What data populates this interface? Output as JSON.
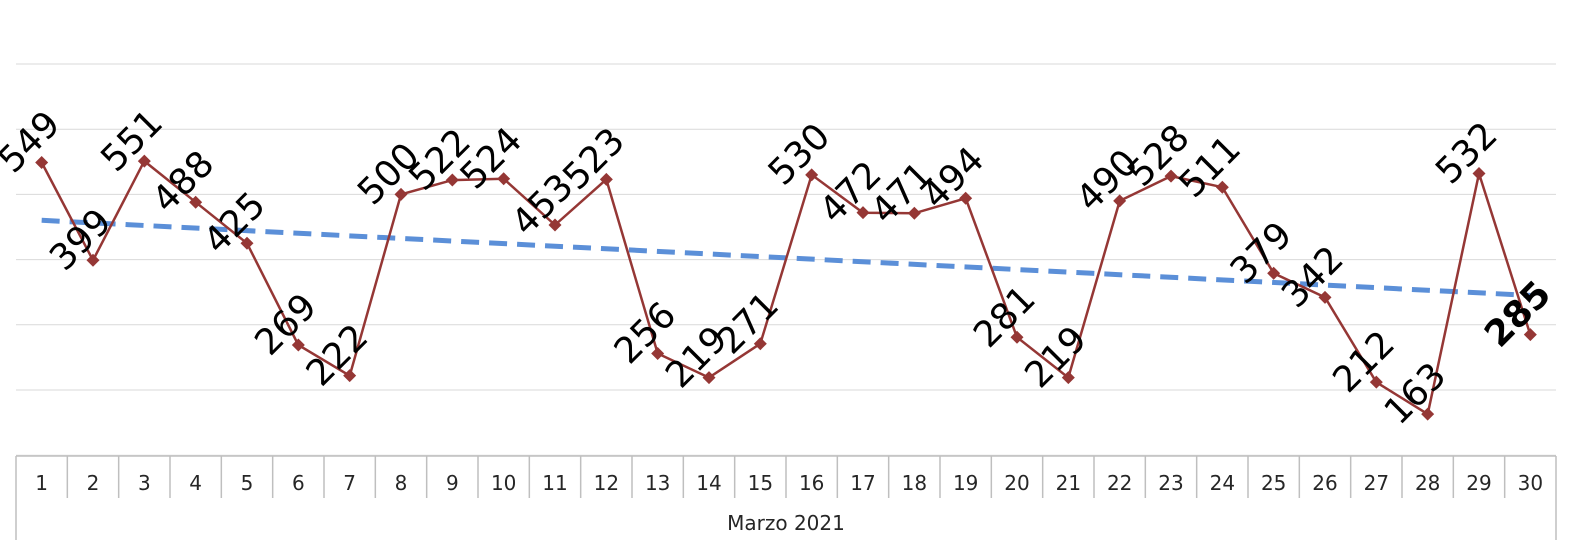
{
  "chart_data": {
    "type": "line",
    "categories": [
      "1",
      "2",
      "3",
      "4",
      "5",
      "6",
      "7",
      "8",
      "9",
      "10",
      "11",
      "12",
      "13",
      "14",
      "15",
      "16",
      "17",
      "18",
      "19",
      "20",
      "21",
      "22",
      "23",
      "24",
      "25",
      "26",
      "27",
      "28",
      "29",
      "30"
    ],
    "series": [
      {
        "values": [
          549,
          399,
          551,
          488,
          425,
          269,
          222,
          500,
          522,
          524,
          453,
          523,
          256,
          219,
          271,
          530,
          472,
          471,
          494,
          281,
          219,
          490,
          528,
          511,
          379,
          342,
          212,
          163,
          532,
          285
        ],
        "color": "#953735",
        "marker": "diamond",
        "data_labels": true
      }
    ],
    "trendline": {
      "type": "linear",
      "style": "dashed",
      "color": "#5B8FD8"
    },
    "group_label": "Marzo 2021",
    "emphasized_label": "285",
    "ylim": [
      0,
      700
    ],
    "grid": true,
    "legend": "none"
  }
}
